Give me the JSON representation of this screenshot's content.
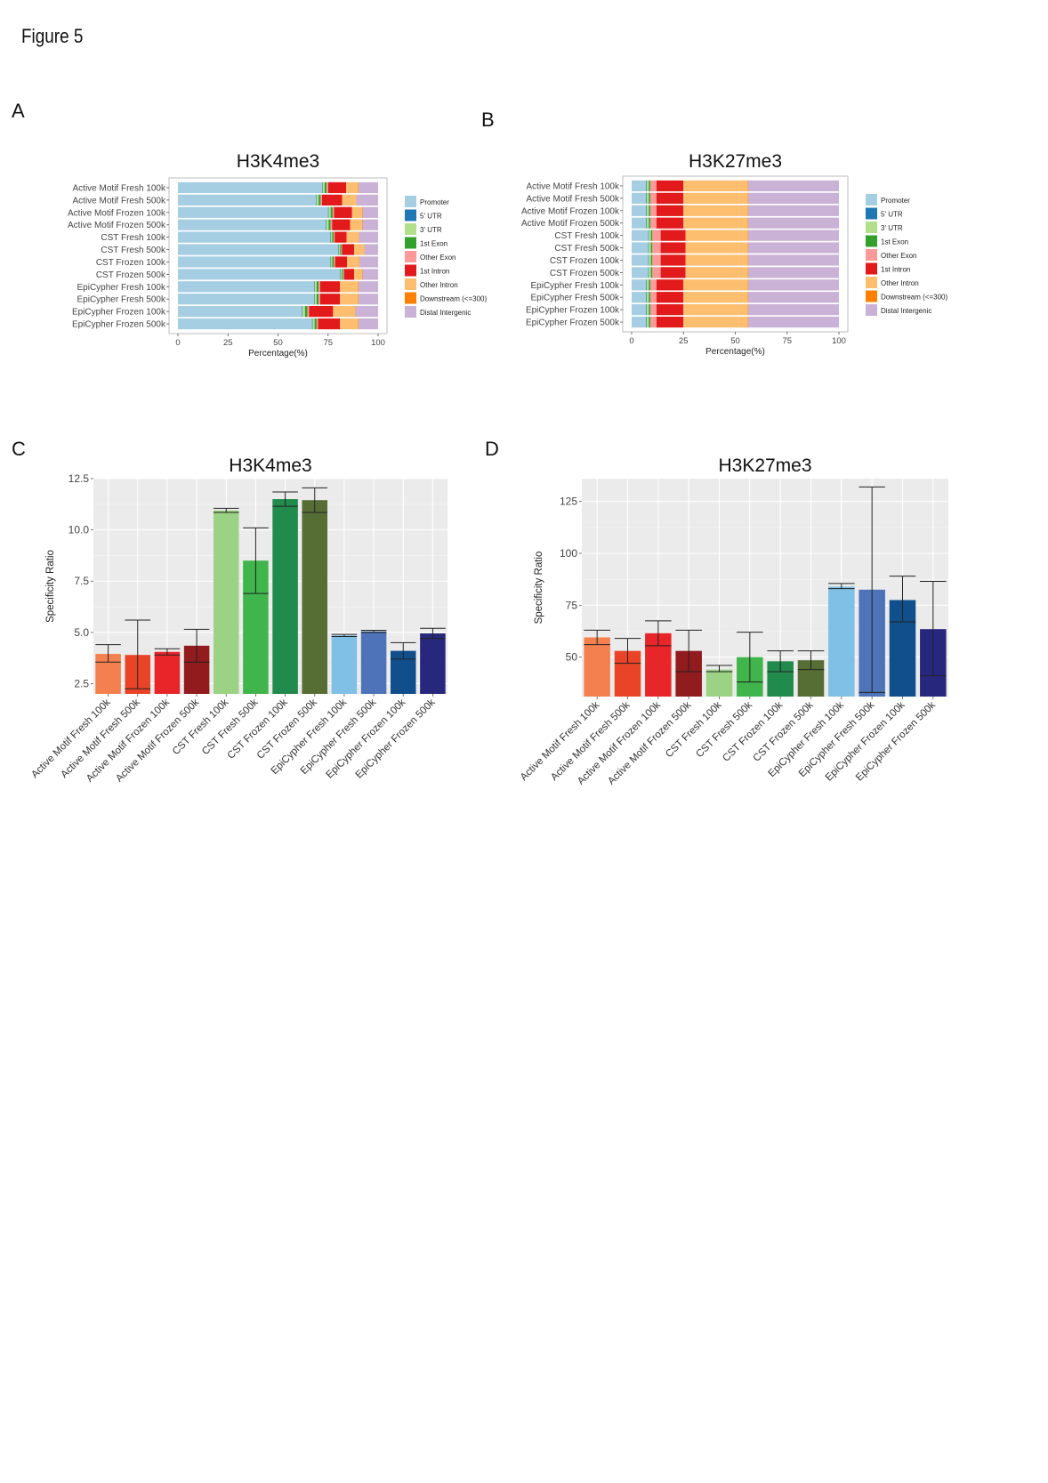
{
  "figure": {
    "title": "Figure 5"
  },
  "panels": {
    "A": "A",
    "B": "B",
    "C": "C",
    "D": "D"
  },
  "chart_data": [
    {
      "panel": "A",
      "type": "bar",
      "orientation": "horizontal",
      "stacked": true,
      "title": "H3K4me3",
      "xlabel": "Percentage(%)",
      "ylabel": "",
      "xlim": [
        0,
        100
      ],
      "xticks": [
        "0",
        "25",
        "50",
        "75",
        "100"
      ],
      "categories": [
        "Active Motif Fresh 100k",
        "Active Motif Fresh 500k",
        "Active Motif Frozen 100k",
        "Active Motif Frozen 500k",
        "CST Fresh 100k",
        "CST Fresh 500k",
        "CST Frozen 100k",
        "CST Frozen 500k",
        "EpiCypher Fresh 100k",
        "EpiCypher Fresh 500k",
        "EpiCypher Frozen 100k",
        "EpiCypher Frozen 500k"
      ],
      "series": [
        {
          "name": "Promoter",
          "color": "#a6cee3",
          "values": [
            72,
            69,
            75,
            74,
            76,
            80,
            76,
            81,
            68,
            68,
            62,
            67
          ]
        },
        {
          "name": "5' UTR",
          "color": "#1f78b4",
          "values": [
            0.3,
            0.3,
            0.3,
            0.3,
            0.3,
            0.3,
            0.3,
            0.3,
            0.3,
            0.3,
            0.3,
            0.3
          ]
        },
        {
          "name": "3' UTR",
          "color": "#b2df8a",
          "values": [
            1,
            1,
            1,
            1,
            0.8,
            0.7,
            0.8,
            0.7,
            1,
            1,
            1.2,
            1
          ]
        },
        {
          "name": "1st Exon",
          "color": "#33a02c",
          "values": [
            1,
            1,
            1,
            1,
            0.7,
            0.6,
            0.8,
            0.6,
            1,
            1,
            1.2,
            1
          ]
        },
        {
          "name": "Other Exon",
          "color": "#fb9a99",
          "values": [
            0.7,
            0.7,
            0.7,
            0.7,
            0.5,
            0.4,
            0.6,
            0.4,
            0.7,
            0.7,
            0.8,
            0.7
          ]
        },
        {
          "name": "1st Intron",
          "color": "#e31a1c",
          "values": [
            9,
            10,
            9,
            9,
            6,
            6,
            6,
            5,
            10,
            10,
            12,
            11
          ]
        },
        {
          "name": "Other Intron",
          "color": "#fdbf6f",
          "values": [
            6,
            7,
            5,
            6,
            6,
            5,
            6,
            4,
            9,
            9,
            11,
            9
          ]
        },
        {
          "name": "Downstream (<=300)",
          "color": "#ff7f00",
          "values": [
            0.2,
            0.2,
            0.2,
            0.2,
            0.2,
            0.2,
            0.2,
            0.2,
            0.2,
            0.2,
            0.2,
            0.2
          ]
        },
        {
          "name": "Distal Intergenic",
          "color": "#cab2d6",
          "values": [
            9.8,
            10.8,
            7.8,
            7.8,
            9.5,
            6.8,
            9.3,
            7.8,
            9.8,
            9.8,
            11.3,
            9.8
          ]
        }
      ],
      "legend_position": "right"
    },
    {
      "panel": "B",
      "type": "bar",
      "orientation": "horizontal",
      "stacked": true,
      "title": "H3K27me3",
      "xlabel": "Percentage(%)",
      "ylabel": "",
      "xlim": [
        0,
        100
      ],
      "xticks": [
        "0",
        "25",
        "50",
        "75",
        "100"
      ],
      "categories": [
        "Active Motif Fresh 100k",
        "Active Motif Fresh 500k",
        "Active Motif Frozen 100k",
        "Active Motif Frozen 500k",
        "CST Fresh 100k",
        "CST Fresh 500k",
        "CST Frozen 100k",
        "CST Frozen 500k",
        "EpiCypher Fresh 100k",
        "EpiCypher Fresh 500k",
        "EpiCypher Frozen 100k",
        "EpiCypher Frozen 500k"
      ],
      "series": [
        {
          "name": "Promoter",
          "color": "#a6cee3",
          "values": [
            7,
            7,
            7,
            7,
            8,
            8,
            8,
            8,
            7,
            7,
            7,
            7
          ]
        },
        {
          "name": "5' UTR",
          "color": "#1f78b4",
          "values": [
            0.3,
            0.3,
            0.3,
            0.3,
            0.3,
            0.3,
            0.3,
            0.3,
            0.3,
            0.3,
            0.3,
            0.3
          ]
        },
        {
          "name": "3' UTR",
          "color": "#b2df8a",
          "values": [
            1,
            1,
            1,
            1,
            1,
            1,
            1,
            1,
            1,
            1,
            1,
            1
          ]
        },
        {
          "name": "1st Exon",
          "color": "#33a02c",
          "values": [
            0.7,
            0.7,
            0.7,
            0.7,
            0.7,
            0.7,
            0.7,
            0.7,
            0.7,
            0.7,
            0.7,
            0.7
          ]
        },
        {
          "name": "Other Exon",
          "color": "#fb9a99",
          "values": [
            3,
            3,
            3,
            3,
            4,
            4,
            4,
            4,
            3,
            3,
            3,
            3
          ]
        },
        {
          "name": "1st Intron",
          "color": "#e31a1c",
          "values": [
            13,
            13,
            13,
            13,
            12,
            12,
            12,
            12,
            13,
            13,
            13,
            13
          ]
        },
        {
          "name": "Other Intron",
          "color": "#fdbf6f",
          "values": [
            31,
            31,
            31,
            31,
            30,
            30,
            30,
            30,
            31,
            31,
            31,
            31
          ]
        },
        {
          "name": "Downstream (<=300)",
          "color": "#ff7f00",
          "values": [
            0.2,
            0.2,
            0.2,
            0.2,
            0.2,
            0.2,
            0.2,
            0.2,
            0.2,
            0.2,
            0.2,
            0.2
          ]
        },
        {
          "name": "Distal Intergenic",
          "color": "#cab2d6",
          "values": [
            43.8,
            43.8,
            43.8,
            43.8,
            43.8,
            43.8,
            43.8,
            43.8,
            43.8,
            43.8,
            43.8,
            43.8
          ]
        }
      ],
      "legend_position": "right"
    },
    {
      "panel": "C",
      "type": "bar",
      "title": "H3K4me3",
      "ylabel": "Specificity Ratio",
      "xlabel": "",
      "ylim": [
        2.0,
        12.5
      ],
      "yticks": [
        "2.5",
        "5.0",
        "7.5",
        "10.0",
        "12.5"
      ],
      "ytick_values": [
        2.5,
        5.0,
        7.5,
        10.0,
        12.5
      ],
      "categories": [
        "Active Motif Fresh 100k",
        "Active Motif Fresh 500k",
        "Active Motif Frozen 100k",
        "Active Motif Frozen 500k",
        "CST Fresh 100k",
        "CST Fresh 500k",
        "CST Frozen 100k",
        "CST Frozen 500k",
        "EpiCypher Fresh 100k",
        "EpiCypher Fresh 500k",
        "EpiCypher Frozen 100k",
        "EpiCypher Frozen 500k"
      ],
      "values": [
        3.95,
        3.9,
        4.05,
        4.35,
        10.95,
        8.5,
        11.5,
        11.45,
        4.85,
        5.05,
        4.1,
        4.95
      ],
      "error_low": [
        3.55,
        2.25,
        3.9,
        3.55,
        10.85,
        6.9,
        11.15,
        10.85,
        4.8,
        5.0,
        3.7,
        4.7
      ],
      "error_high": [
        4.4,
        5.6,
        4.2,
        5.15,
        11.05,
        10.1,
        11.85,
        12.05,
        4.9,
        5.1,
        4.5,
        5.2
      ],
      "colors": [
        "#f4804f",
        "#e94427",
        "#e8262a",
        "#921b1e",
        "#9cd284",
        "#3fb54b",
        "#218a4d",
        "#566d34",
        "#80bfe6",
        "#4e73b8",
        "#104f8b",
        "#27287d"
      ],
      "grid": true
    },
    {
      "panel": "D",
      "type": "bar",
      "title": "H3K27me3",
      "ylabel": "Specificity Ratio",
      "xlabel": "",
      "ylim": [
        31,
        136
      ],
      "yticks": [
        "50",
        "75",
        "100",
        "125"
      ],
      "ytick_values": [
        50,
        75,
        100,
        125
      ],
      "categories": [
        "Active Motif Fresh 100k",
        "Active Motif Fresh 500k",
        "Active Motif Frozen 100k",
        "Active Motif Frozen 500k",
        "CST Fresh 100k",
        "CST Fresh 500k",
        "CST Frozen 100k",
        "CST Frozen 500k",
        "EpiCypher Fresh 100k",
        "EpiCypher Fresh 500k",
        "EpiCypher Frozen 100k",
        "EpiCypher Frozen 500k"
      ],
      "values": [
        59.5,
        53,
        61.5,
        53,
        44,
        50,
        48,
        48.5,
        84,
        82.5,
        77.5,
        63.5
      ],
      "error_low": [
        56,
        47,
        55.5,
        43,
        43,
        38,
        43,
        44,
        83,
        33,
        67,
        41
      ],
      "error_high": [
        63,
        59,
        67.5,
        63,
        46,
        62,
        53,
        53,
        85.5,
        132,
        89,
        86.5
      ],
      "colors": [
        "#f4804f",
        "#e94427",
        "#e8262a",
        "#921b1e",
        "#9cd284",
        "#3fb54b",
        "#218a4d",
        "#566d34",
        "#80bfe6",
        "#4e73b8",
        "#104f8b",
        "#27287d"
      ],
      "grid": true
    }
  ]
}
